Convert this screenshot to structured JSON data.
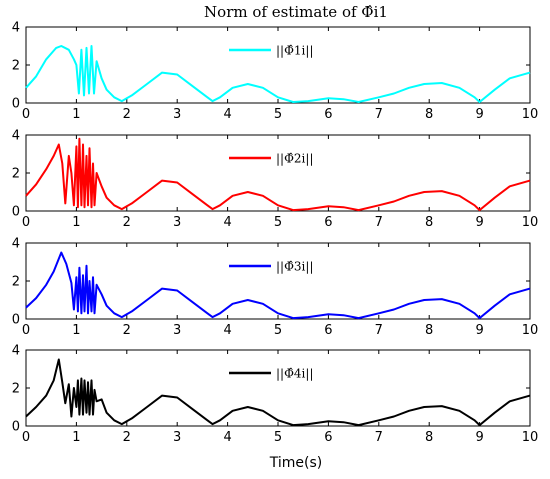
{
  "chart_data": {
    "type": "line",
    "title": "Norm of estimate of Φ̂i1",
    "xlabel": "Time(s)",
    "ylabel": "",
    "grid": false,
    "legend_placement": "top-center",
    "xlim": [
      0,
      10
    ],
    "xticks": [
      "0",
      "1",
      "2",
      "3",
      "4",
      "5",
      "6",
      "7",
      "8",
      "9",
      "10"
    ],
    "subplots": [
      {
        "ylim": [
          0,
          4
        ],
        "yticks": [
          "0",
          "2",
          "4"
        ],
        "series": [
          {
            "name": "||Φ̂1i||",
            "color": "#00ffff",
            "x": [
              0,
              0.2,
              0.4,
              0.6,
              0.7,
              0.85,
              0.95,
              1.0,
              1.05,
              1.1,
              1.15,
              1.2,
              1.25,
              1.3,
              1.35,
              1.4,
              1.5,
              1.6,
              1.75,
              1.9,
              2.1,
              2.4,
              2.7,
              3.0,
              3.3,
              3.6,
              3.7,
              3.85,
              4.1,
              4.4,
              4.7,
              5.0,
              5.3,
              5.6,
              6.0,
              6.3,
              6.6,
              7.0,
              7.3,
              7.6,
              7.9,
              8.25,
              8.6,
              8.9,
              9.0,
              9.3,
              9.6,
              10.0
            ],
            "values": [
              0.8,
              1.4,
              2.3,
              2.9,
              3.0,
              2.8,
              2.3,
              2.0,
              0.5,
              2.8,
              0.4,
              2.9,
              0.5,
              3.0,
              0.5,
              2.2,
              1.3,
              0.7,
              0.3,
              0.1,
              0.4,
              1.0,
              1.6,
              1.5,
              0.9,
              0.3,
              0.1,
              0.3,
              0.8,
              1.0,
              0.8,
              0.3,
              0.05,
              0.1,
              0.25,
              0.2,
              0.05,
              0.3,
              0.5,
              0.8,
              1.0,
              1.05,
              0.8,
              0.3,
              0.05,
              0.7,
              1.3,
              1.6
            ]
          }
        ]
      },
      {
        "ylim": [
          0,
          4
        ],
        "yticks": [
          "0",
          "2",
          "4"
        ],
        "series": [
          {
            "name": "||Φ̂2i||",
            "color": "#ff0000",
            "x": [
              0,
              0.2,
              0.4,
              0.55,
              0.65,
              0.72,
              0.78,
              0.85,
              0.9,
              0.95,
              1.0,
              1.03,
              1.06,
              1.1,
              1.13,
              1.16,
              1.2,
              1.23,
              1.26,
              1.3,
              1.33,
              1.36,
              1.4,
              1.5,
              1.6,
              1.75,
              1.9,
              2.1,
              2.4,
              2.7,
              3.0,
              3.3,
              3.6,
              3.7,
              3.85,
              4.1,
              4.4,
              4.7,
              5.0,
              5.3,
              5.6,
              6.0,
              6.3,
              6.6,
              7.0,
              7.3,
              7.6,
              7.9,
              8.25,
              8.6,
              8.9,
              9.0,
              9.3,
              9.6,
              10.0
            ],
            "values": [
              0.8,
              1.4,
              2.2,
              2.9,
              3.5,
              2.5,
              0.4,
              2.9,
              2.0,
              0.3,
              3.4,
              0.2,
              3.8,
              0.3,
              3.5,
              0.2,
              2.9,
              0.3,
              3.3,
              0.2,
              2.5,
              0.3,
              2.0,
              1.3,
              0.7,
              0.3,
              0.1,
              0.4,
              1.0,
              1.6,
              1.5,
              0.9,
              0.3,
              0.1,
              0.3,
              0.8,
              1.0,
              0.8,
              0.3,
              0.05,
              0.1,
              0.25,
              0.2,
              0.05,
              0.3,
              0.5,
              0.8,
              1.0,
              1.05,
              0.8,
              0.3,
              0.05,
              0.7,
              1.3,
              1.6
            ]
          }
        ]
      },
      {
        "ylim": [
          0,
          4
        ],
        "yticks": [
          "0",
          "2",
          "4"
        ],
        "series": [
          {
            "name": "||Φ̂3i||",
            "color": "#0000ff",
            "x": [
              0,
              0.2,
              0.4,
              0.55,
              0.7,
              0.8,
              0.9,
              0.95,
              1.0,
              1.03,
              1.06,
              1.1,
              1.13,
              1.16,
              1.2,
              1.23,
              1.26,
              1.3,
              1.33,
              1.36,
              1.4,
              1.5,
              1.6,
              1.75,
              1.9,
              2.1,
              2.4,
              2.7,
              3.0,
              3.3,
              3.6,
              3.7,
              3.85,
              4.1,
              4.4,
              4.7,
              5.0,
              5.3,
              5.6,
              6.0,
              6.3,
              6.6,
              7.0,
              7.3,
              7.6,
              7.9,
              8.25,
              8.6,
              8.9,
              9.0,
              9.3,
              9.6,
              10.0
            ],
            "values": [
              0.6,
              1.1,
              1.8,
              2.5,
              3.5,
              2.9,
              1.9,
              0.5,
              2.2,
              0.4,
              2.7,
              0.3,
              2.3,
              0.4,
              2.8,
              0.3,
              2.0,
              0.4,
              2.2,
              0.3,
              1.8,
              1.3,
              0.7,
              0.3,
              0.1,
              0.4,
              1.0,
              1.6,
              1.5,
              0.9,
              0.3,
              0.1,
              0.3,
              0.8,
              1.0,
              0.8,
              0.3,
              0.05,
              0.1,
              0.25,
              0.2,
              0.05,
              0.3,
              0.5,
              0.8,
              1.0,
              1.05,
              0.8,
              0.3,
              0.05,
              0.7,
              1.3,
              1.6
            ]
          }
        ]
      },
      {
        "ylim": [
          0,
          4
        ],
        "yticks": [
          "0",
          "2",
          "4"
        ],
        "series": [
          {
            "name": "||Φ̂4i||",
            "color": "#000000",
            "x": [
              0,
              0.2,
              0.4,
              0.55,
              0.65,
              0.72,
              0.78,
              0.85,
              0.9,
              0.95,
              1.0,
              1.03,
              1.06,
              1.1,
              1.13,
              1.16,
              1.2,
              1.23,
              1.26,
              1.3,
              1.33,
              1.36,
              1.4,
              1.5,
              1.6,
              1.75,
              1.9,
              2.1,
              2.4,
              2.7,
              3.0,
              3.3,
              3.6,
              3.7,
              3.85,
              4.1,
              4.4,
              4.7,
              5.0,
              5.3,
              5.6,
              6.0,
              6.3,
              6.6,
              7.0,
              7.3,
              7.6,
              7.9,
              8.25,
              8.6,
              8.9,
              9.0,
              9.3,
              9.6,
              10.0
            ],
            "values": [
              0.5,
              1.0,
              1.6,
              2.4,
              3.5,
              2.3,
              1.2,
              2.2,
              0.5,
              2.0,
              1.0,
              2.4,
              0.6,
              2.5,
              0.6,
              2.4,
              0.7,
              2.3,
              0.6,
              2.4,
              0.6,
              1.9,
              1.3,
              1.4,
              0.7,
              0.3,
              0.1,
              0.4,
              1.0,
              1.6,
              1.5,
              0.9,
              0.3,
              0.1,
              0.3,
              0.8,
              1.0,
              0.8,
              0.3,
              0.05,
              0.1,
              0.25,
              0.2,
              0.05,
              0.3,
              0.5,
              0.8,
              1.0,
              1.05,
              0.8,
              0.3,
              0.05,
              0.7,
              1.3,
              1.6
            ]
          }
        ]
      }
    ]
  }
}
